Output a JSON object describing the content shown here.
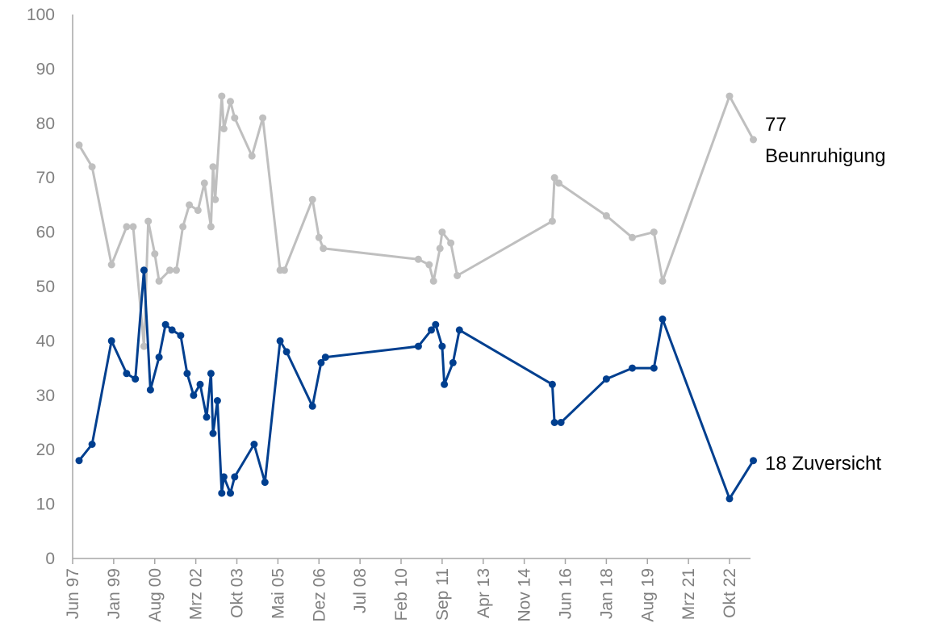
{
  "chart_data": {
    "type": "line",
    "title": "",
    "xlabel": "",
    "ylabel": "",
    "ylim": [
      0,
      100
    ],
    "y_ticks": [
      "0",
      "10",
      "20",
      "30",
      "40",
      "50",
      "60",
      "70",
      "80",
      "90",
      "100"
    ],
    "x_ticks": [
      "Jun 97",
      "Jan 99",
      "Aug 00",
      "Mrz 02",
      "Okt 03",
      "Mai 05",
      "Dez 06",
      "Jul 08",
      "Feb 10",
      "Sep 11",
      "Apr 13",
      "Nov 14",
      "Jun 16",
      "Jan 18",
      "Aug 19",
      "Mrz 21",
      "Okt 22"
    ],
    "grid": false,
    "legend": "none; series labelled at right end of lines",
    "colors": {
      "Beunruhigung": "#bfbfbf",
      "Zuversicht": "#003f8f",
      "axis": "#a6a6a6",
      "ticks": "#808080"
    },
    "end_labels": {
      "Beunruhigung": [
        "77",
        "Beunruhigung"
      ],
      "Zuversicht": "18 Zuversicht"
    },
    "series": [
      {
        "name": "Beunruhigung",
        "points": [
          [
            "1997-09",
            76
          ],
          [
            "1998-03",
            72
          ],
          [
            "1998-12",
            54
          ],
          [
            "1999-07",
            61
          ],
          [
            "1999-10",
            61
          ],
          [
            "2000-03",
            39
          ],
          [
            "2000-05",
            62
          ],
          [
            "2000-08",
            56
          ],
          [
            "2000-10",
            51
          ],
          [
            "2001-03",
            53
          ],
          [
            "2001-06",
            53
          ],
          [
            "2001-09",
            61
          ],
          [
            "2001-12",
            65
          ],
          [
            "2002-04",
            64
          ],
          [
            "2002-07",
            69
          ],
          [
            "2002-10",
            61
          ],
          [
            "2002-11",
            72
          ],
          [
            "2002-12",
            66
          ],
          [
            "2003-03",
            85
          ],
          [
            "2003-04",
            79
          ],
          [
            "2003-07",
            84
          ],
          [
            "2003-09",
            81
          ],
          [
            "2004-05",
            74
          ],
          [
            "2004-10",
            81
          ],
          [
            "2005-06",
            53
          ],
          [
            "2005-08",
            53
          ],
          [
            "2006-09",
            66
          ],
          [
            "2006-12",
            59
          ],
          [
            "2007-02",
            57
          ],
          [
            "2010-10",
            55
          ],
          [
            "2011-03",
            54
          ],
          [
            "2011-05",
            51
          ],
          [
            "2011-08",
            57
          ],
          [
            "2011-09",
            60
          ],
          [
            "2012-01",
            58
          ],
          [
            "2012-04",
            52
          ],
          [
            "2015-12",
            62
          ],
          [
            "2016-01",
            70
          ],
          [
            "2016-03",
            69
          ],
          [
            "2018-01",
            63
          ],
          [
            "2019-01",
            59
          ],
          [
            "2019-11",
            60
          ],
          [
            "2020-03",
            51
          ],
          [
            "2022-10",
            85
          ],
          [
            "2023-09",
            77
          ]
        ]
      },
      {
        "name": "Zuversicht",
        "points": [
          [
            "1997-09",
            18
          ],
          [
            "1998-03",
            21
          ],
          [
            "1998-12",
            40
          ],
          [
            "1999-07",
            34
          ],
          [
            "1999-11",
            33
          ],
          [
            "2000-03",
            53
          ],
          [
            "2000-06",
            31
          ],
          [
            "2000-10",
            37
          ],
          [
            "2001-01",
            43
          ],
          [
            "2001-04",
            42
          ],
          [
            "2001-08",
            41
          ],
          [
            "2001-11",
            34
          ],
          [
            "2002-02",
            30
          ],
          [
            "2002-05",
            32
          ],
          [
            "2002-08",
            26
          ],
          [
            "2002-10",
            34
          ],
          [
            "2002-11",
            23
          ],
          [
            "2003-01",
            29
          ],
          [
            "2003-03",
            12
          ],
          [
            "2003-04",
            15
          ],
          [
            "2003-07",
            12
          ],
          [
            "2003-09",
            15
          ],
          [
            "2004-06",
            21
          ],
          [
            "2004-11",
            14
          ],
          [
            "2005-06",
            40
          ],
          [
            "2005-09",
            38
          ],
          [
            "2006-09",
            28
          ],
          [
            "2007-01",
            36
          ],
          [
            "2007-03",
            37
          ],
          [
            "2010-10",
            39
          ],
          [
            "2011-04",
            42
          ],
          [
            "2011-06",
            43
          ],
          [
            "2011-09",
            39
          ],
          [
            "2011-10",
            32
          ],
          [
            "2012-02",
            36
          ],
          [
            "2012-05",
            42
          ],
          [
            "2015-12",
            32
          ],
          [
            "2016-01",
            25
          ],
          [
            "2016-04",
            25
          ],
          [
            "2018-01",
            33
          ],
          [
            "2019-01",
            35
          ],
          [
            "2019-11",
            35
          ],
          [
            "2020-03",
            44
          ],
          [
            "2022-10",
            11
          ],
          [
            "2023-09",
            18
          ]
        ]
      }
    ]
  }
}
